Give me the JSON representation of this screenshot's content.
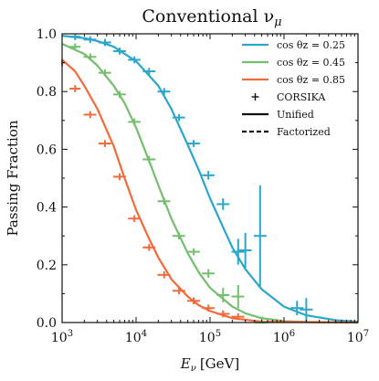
{
  "chart_data": {
    "type": "line",
    "title": "Conventional ν",
    "title_sub": "μ",
    "xlabel": "E",
    "xlabel_sub": "ν",
    "xlabel_unit": "[GeV]",
    "ylabel": "Passing Fraction",
    "xscale": "log",
    "xlim": [
      1000,
      10000000
    ],
    "ylim": [
      0,
      1
    ],
    "x_ticks": [
      {
        "base": "10",
        "exp": "3"
      },
      {
        "base": "10",
        "exp": "4"
      },
      {
        "base": "10",
        "exp": "5"
      },
      {
        "base": "10",
        "exp": "6"
      },
      {
        "base": "10",
        "exp": "7"
      }
    ],
    "y_ticks": [
      "0.0",
      "0.2",
      "0.4",
      "0.6",
      "0.8",
      "1.0"
    ],
    "legend_position": "top-right",
    "legend": [
      {
        "label": "cos θz = 0.25",
        "kind": "line",
        "color": "#2ba6cb"
      },
      {
        "label": "cos θz = 0.45",
        "kind": "line",
        "color": "#74bf6e"
      },
      {
        "label": "cos θz = 0.85",
        "kind": "line",
        "color": "#f26a3b"
      },
      {
        "label": "CORSIKA",
        "kind": "plus",
        "color": "#111111"
      },
      {
        "label": "Unified",
        "kind": "solid",
        "color": "#111111"
      },
      {
        "label": "Factorized",
        "kind": "dashed",
        "color": "#111111"
      }
    ],
    "series": [
      {
        "name": "cos θz = 0.25",
        "color": "#2ba6cb",
        "curve": [
          [
            1000,
            0.993
          ],
          [
            2000,
            0.985
          ],
          [
            3000,
            0.975
          ],
          [
            5000,
            0.955
          ],
          [
            10000,
            0.905
          ],
          [
            20000,
            0.82
          ],
          [
            30000,
            0.74
          ],
          [
            50000,
            0.615
          ],
          [
            70000,
            0.53
          ],
          [
            100000,
            0.43
          ],
          [
            150000,
            0.33
          ],
          [
            200000,
            0.26
          ],
          [
            300000,
            0.185
          ],
          [
            500000,
            0.115
          ],
          [
            1000000,
            0.055
          ],
          [
            2000000,
            0.025
          ],
          [
            5000000,
            0.008
          ],
          [
            10000000,
            0.003
          ]
        ],
        "points": [
          {
            "x": 1500,
            "y": 0.99,
            "yerr": 0.0,
            "xlo": 1260,
            "xhi": 1780
          },
          {
            "x": 2400,
            "y": 0.98,
            "yerr": 0.0,
            "xlo": 1950,
            "xhi": 2900
          },
          {
            "x": 3800,
            "y": 0.97,
            "yerr": 0.0,
            "xlo": 3100,
            "xhi": 4600
          },
          {
            "x": 6000,
            "y": 0.94,
            "yerr": 0.0,
            "xlo": 4900,
            "xhi": 7300
          },
          {
            "x": 9500,
            "y": 0.91,
            "yerr": 0.0,
            "xlo": 7800,
            "xhi": 11500
          },
          {
            "x": 15000,
            "y": 0.87,
            "yerr": 0.0,
            "xlo": 12300,
            "xhi": 18300
          },
          {
            "x": 24000,
            "y": 0.8,
            "yerr": 0.0,
            "xlo": 19500,
            "xhi": 29000
          },
          {
            "x": 38000,
            "y": 0.71,
            "yerr": 0.0,
            "xlo": 31000,
            "xhi": 46000
          },
          {
            "x": 60000,
            "y": 0.62,
            "yerr": 0.0,
            "xlo": 49000,
            "xhi": 73000
          },
          {
            "x": 95000,
            "y": 0.51,
            "yerr": 0.015,
            "xlo": 78000,
            "xhi": 115000
          },
          {
            "x": 150000,
            "y": 0.41,
            "yerr": 0.02,
            "xlo": 123000,
            "xhi": 183000
          },
          {
            "x": 240000,
            "y": 0.245,
            "yerr": 0.045,
            "xlo": 195000,
            "xhi": 290000
          },
          {
            "x": 300000,
            "y": 0.25,
            "yerr": 0.06,
            "xlo": 245000,
            "xhi": 365000
          },
          {
            "x": 475000,
            "y": 0.3,
            "yerr": 0.175,
            "xlo": 390000,
            "xhi": 580000
          },
          {
            "x": 1500000,
            "y": 0.05,
            "yerr": 0.025,
            "xlo": 1230000,
            "xhi": 1830000
          },
          {
            "x": 2000000,
            "y": 0.045,
            "yerr": 0.04,
            "xlo": 1640000,
            "xhi": 2440000
          }
        ]
      },
      {
        "name": "cos θz = 0.45",
        "color": "#74bf6e",
        "curve": [
          [
            1000,
            0.965
          ],
          [
            2000,
            0.93
          ],
          [
            3000,
            0.89
          ],
          [
            5000,
            0.82
          ],
          [
            7000,
            0.76
          ],
          [
            10000,
            0.675
          ],
          [
            15000,
            0.56
          ],
          [
            20000,
            0.475
          ],
          [
            30000,
            0.36
          ],
          [
            50000,
            0.24
          ],
          [
            70000,
            0.175
          ],
          [
            100000,
            0.12
          ],
          [
            200000,
            0.055
          ],
          [
            300000,
            0.032
          ],
          [
            500000,
            0.015
          ],
          [
            1000000,
            0.005
          ],
          [
            2000000,
            0.002
          ],
          [
            10000000,
            0.0
          ]
        ],
        "points": [
          {
            "x": 1500,
            "y": 0.955,
            "yerr": 0.0,
            "xlo": 1260,
            "xhi": 1780
          },
          {
            "x": 2400,
            "y": 0.92,
            "yerr": 0.0,
            "xlo": 1950,
            "xhi": 2900
          },
          {
            "x": 3800,
            "y": 0.865,
            "yerr": 0.0,
            "xlo": 3100,
            "xhi": 4600
          },
          {
            "x": 6000,
            "y": 0.79,
            "yerr": 0.0,
            "xlo": 4900,
            "xhi": 7300
          },
          {
            "x": 9500,
            "y": 0.695,
            "yerr": 0.0,
            "xlo": 7800,
            "xhi": 11500
          },
          {
            "x": 15000,
            "y": 0.565,
            "yerr": 0.0,
            "xlo": 12300,
            "xhi": 18300
          },
          {
            "x": 24000,
            "y": 0.42,
            "yerr": 0.0,
            "xlo": 19500,
            "xhi": 29000
          },
          {
            "x": 38000,
            "y": 0.3,
            "yerr": 0.0,
            "xlo": 31000,
            "xhi": 46000
          },
          {
            "x": 60000,
            "y": 0.245,
            "yerr": 0.0,
            "xlo": 49000,
            "xhi": 73000
          },
          {
            "x": 95000,
            "y": 0.17,
            "yerr": 0.015,
            "xlo": 78000,
            "xhi": 115000
          },
          {
            "x": 150000,
            "y": 0.095,
            "yerr": 0.025,
            "xlo": 123000,
            "xhi": 183000
          },
          {
            "x": 240000,
            "y": 0.09,
            "yerr": 0.04,
            "xlo": 195000,
            "xhi": 290000
          },
          {
            "x": 500000,
            "y": 0.0,
            "yerr": 0.02,
            "xlo": 410000,
            "xhi": 610000
          }
        ]
      },
      {
        "name": "cos θz = 0.85",
        "color": "#f26a3b",
        "curve": [
          [
            1000,
            0.91
          ],
          [
            1500,
            0.87
          ],
          [
            2000,
            0.82
          ],
          [
            3000,
            0.74
          ],
          [
            5000,
            0.61
          ],
          [
            7000,
            0.5
          ],
          [
            10000,
            0.39
          ],
          [
            15000,
            0.29
          ],
          [
            20000,
            0.225
          ],
          [
            30000,
            0.15
          ],
          [
            50000,
            0.09
          ],
          [
            70000,
            0.06
          ],
          [
            100000,
            0.04
          ],
          [
            200000,
            0.015
          ],
          [
            500000,
            0.003
          ],
          [
            10000000,
            0.0
          ]
        ],
        "points": [
          {
            "x": 1000,
            "y": 0.9,
            "yerr": 0.0,
            "xlo": 1000,
            "xhi": 1150
          },
          {
            "x": 1500,
            "y": 0.81,
            "yerr": 0.0,
            "xlo": 1260,
            "xhi": 1780
          },
          {
            "x": 2400,
            "y": 0.72,
            "yerr": 0.0,
            "xlo": 1950,
            "xhi": 2900
          },
          {
            "x": 3800,
            "y": 0.62,
            "yerr": 0.0,
            "xlo": 3100,
            "xhi": 4600
          },
          {
            "x": 6000,
            "y": 0.505,
            "yerr": 0.0,
            "xlo": 4900,
            "xhi": 7300
          },
          {
            "x": 9500,
            "y": 0.36,
            "yerr": 0.0,
            "xlo": 7800,
            "xhi": 11500
          },
          {
            "x": 15000,
            "y": 0.26,
            "yerr": 0.0,
            "xlo": 12300,
            "xhi": 18300
          },
          {
            "x": 24000,
            "y": 0.165,
            "yerr": 0.0,
            "xlo": 19500,
            "xhi": 29000
          },
          {
            "x": 38000,
            "y": 0.11,
            "yerr": 0.0,
            "xlo": 31000,
            "xhi": 46000
          },
          {
            "x": 60000,
            "y": 0.075,
            "yerr": 0.0,
            "xlo": 49000,
            "xhi": 73000
          },
          {
            "x": 95000,
            "y": 0.05,
            "yerr": 0.0,
            "xlo": 78000,
            "xhi": 115000
          },
          {
            "x": 150000,
            "y": 0.03,
            "yerr": 0.0,
            "xlo": 123000,
            "xhi": 183000
          },
          {
            "x": 240000,
            "y": 0.02,
            "yerr": 0.0,
            "xlo": 195000,
            "xhi": 290000
          }
        ]
      }
    ]
  }
}
